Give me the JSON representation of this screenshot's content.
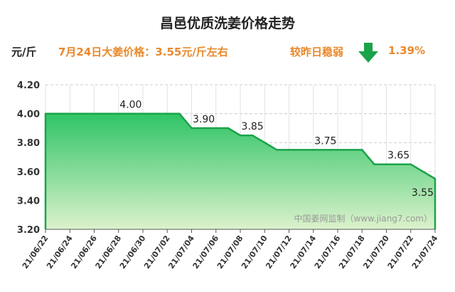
{
  "header": {
    "title": "昌邑优质洗姜价格走势",
    "unit": "元/斤",
    "price_note": "7月24日大姜价格：3.55元/斤左右",
    "compare_label": "较昨日稳弱",
    "change_pct": "1.39%"
  },
  "watermark": "中国姜网监制（www.jiang7.com）",
  "colors": {
    "accent": "#e8892c",
    "line": "#1aa34a",
    "fill_top": "#2fc466",
    "fill_bottom": "#d9f0c8",
    "arrow": "#1aa34a"
  },
  "icons": {
    "trend": "down-arrow-icon"
  },
  "chart_data": {
    "type": "area",
    "title": "昌邑优质洗姜价格走势",
    "ylabel": "元/斤",
    "ylim": [
      3.2,
      4.2
    ],
    "yticks": [
      "3.20",
      "3.40",
      "3.60",
      "3.80",
      "4.00",
      "4.20"
    ],
    "xlim": [
      "2021-06-22",
      "2021-07-24"
    ],
    "xticks": [
      "21/06/22",
      "21/06/24",
      "21/06/26",
      "21/06/28",
      "21/06/30",
      "21/07/02",
      "21/07/04",
      "21/07/06",
      "21/07/08",
      "21/07/10",
      "21/07/12",
      "21/07/14",
      "21/07/16",
      "21/07/18",
      "21/07/20",
      "21/07/22",
      "21/07/24"
    ],
    "grid": true,
    "series": [
      {
        "x": [
          "2021-06-22",
          "2021-07-03",
          "2021-07-04",
          "2021-07-07",
          "2021-07-08",
          "2021-07-09",
          "2021-07-10",
          "2021-07-11",
          "2021-07-12",
          "2021-07-18",
          "2021-07-19",
          "2021-07-22",
          "2021-07-24"
        ],
        "y": [
          4.0,
          4.0,
          3.9,
          3.9,
          3.85,
          3.85,
          3.8,
          3.75,
          3.75,
          3.75,
          3.65,
          3.65,
          3.55
        ]
      }
    ],
    "data_labels": [
      {
        "x": "2021-06-29",
        "y": 4.0,
        "text": "4.00"
      },
      {
        "x": "2021-07-05",
        "y": 3.9,
        "text": "3.90"
      },
      {
        "x": "2021-07-09",
        "y": 3.85,
        "text": "3.85"
      },
      {
        "x": "2021-07-15",
        "y": 3.75,
        "text": "3.75"
      },
      {
        "x": "2021-07-21",
        "y": 3.65,
        "text": "3.65"
      },
      {
        "x": "2021-07-24",
        "y": 3.55,
        "text": "3.55"
      }
    ]
  }
}
